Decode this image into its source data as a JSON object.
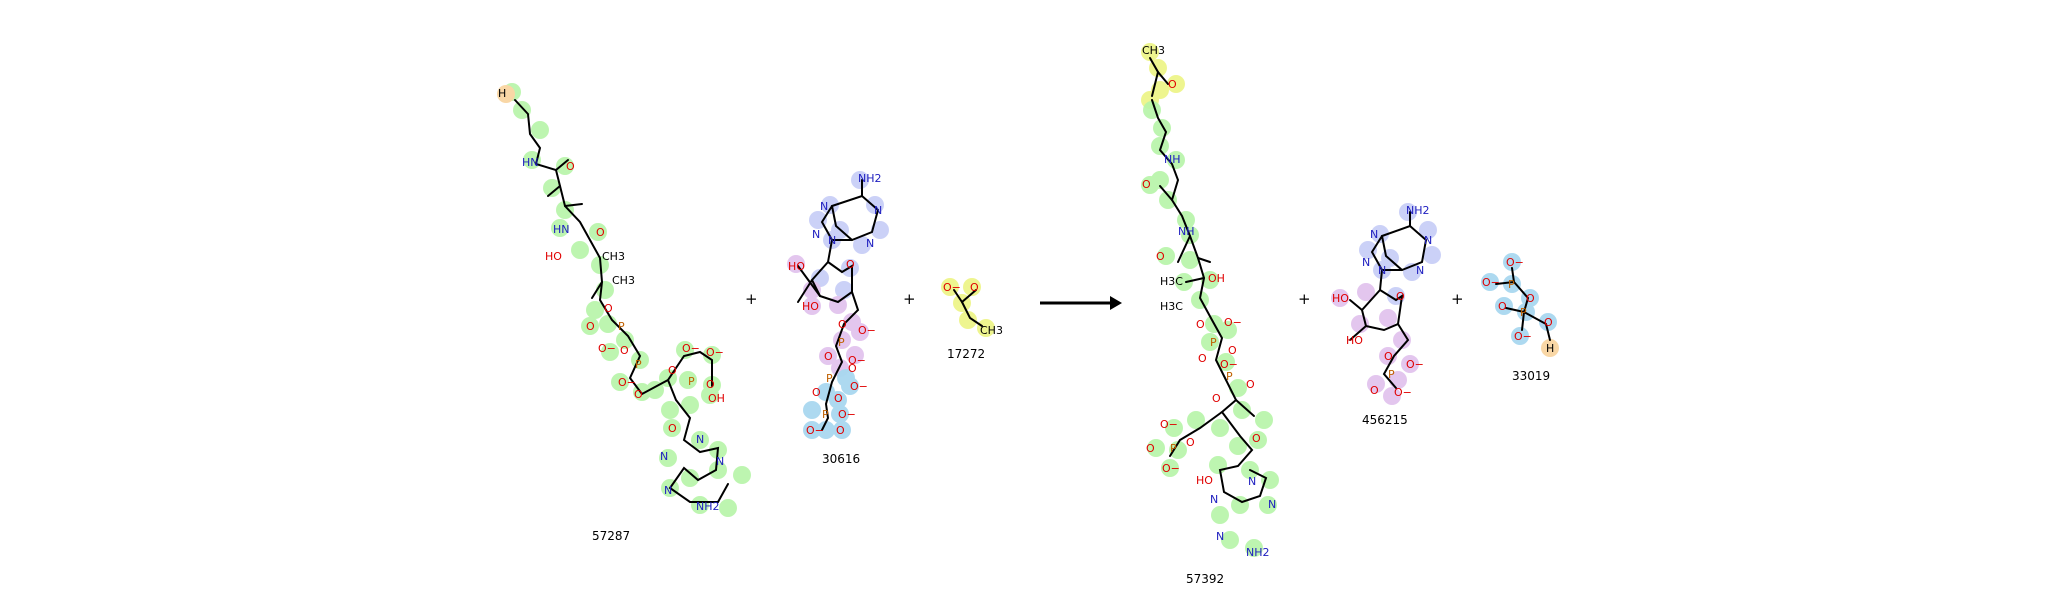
{
  "reaction": {
    "operator_plus": "+",
    "reactants": [
      {
        "id": "57287"
      },
      {
        "id": "30616"
      },
      {
        "id": "17272"
      }
    ],
    "products": [
      {
        "id": "57392"
      },
      {
        "id": "456215"
      },
      {
        "id": "33019"
      }
    ]
  },
  "atom_labels": {
    "H": "H",
    "HN": "HN",
    "NH": "NH",
    "O": "O",
    "Ominus": "O−",
    "HO": "HO",
    "OH": "OH",
    "CH3": "CH3",
    "H3C": "H3C",
    "N": "N",
    "NH2": "NH2",
    "P": "P"
  },
  "colors": {
    "hl_green": "#b6f5a8",
    "hl_blue": "#c9cff7",
    "hl_purple": "#e2c4ee",
    "hl_cyan": "#a9d8f0",
    "hl_yellow": "#eef58a",
    "hl_orange": "#f9d7a6",
    "atom_O": "#e00000",
    "atom_N": "#2020c0",
    "atom_P": "#c06000"
  }
}
